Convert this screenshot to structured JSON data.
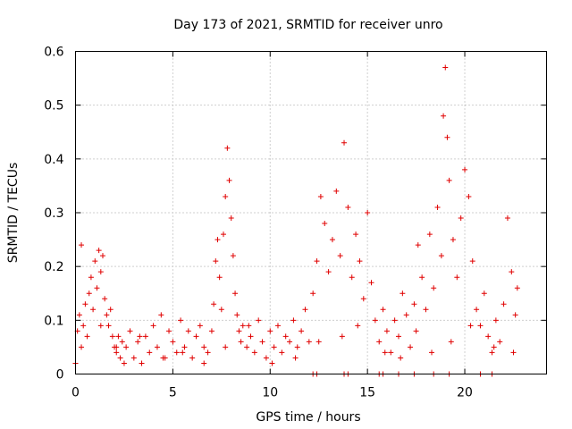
{
  "chart_data": {
    "type": "scatter",
    "title": "Day 173 of 2021, SRMTID for receiver unro",
    "xlabel": "GPS time / hours",
    "ylabel": "SRMTID / TECUs",
    "xlim": [
      0,
      24.2
    ],
    "ylim": [
      0,
      0.6
    ],
    "xticks": [
      0,
      5,
      10,
      15,
      20
    ],
    "yticks": [
      0,
      0.1,
      0.2,
      0.3,
      0.4,
      0.5,
      0.6
    ],
    "xtick_labels": [
      "0",
      "5",
      "10",
      "15",
      "20"
    ],
    "ytick_labels": [
      "0",
      "0.1",
      "0.2",
      "0.3",
      "0.4",
      "0.5",
      "0.6"
    ],
    "grid": true,
    "marker": "+",
    "color": "#e00000",
    "series": [
      {
        "name": "SRMTID",
        "x": [
          0.0,
          0.1,
          0.2,
          0.3,
          0.4,
          0.5,
          0.6,
          0.7,
          0.8,
          0.9,
          1.0,
          1.1,
          1.2,
          1.3,
          1.4,
          1.5,
          1.6,
          1.7,
          1.8,
          1.9,
          2.0,
          2.1,
          2.2,
          2.3,
          2.4,
          2.5,
          2.6,
          2.8,
          3.0,
          3.2,
          3.4,
          3.6,
          3.8,
          4.0,
          4.2,
          4.4,
          4.6,
          4.8,
          5.0,
          5.2,
          5.4,
          5.6,
          5.8,
          6.0,
          6.2,
          6.4,
          6.6,
          6.8,
          7.0,
          7.1,
          7.2,
          7.3,
          7.4,
          7.5,
          7.6,
          7.7,
          7.8,
          7.9,
          8.0,
          8.1,
          8.2,
          8.3,
          8.4,
          8.5,
          8.6,
          8.8,
          9.0,
          9.2,
          9.4,
          9.6,
          9.8,
          10.0,
          10.2,
          10.4,
          10.6,
          10.8,
          11.0,
          11.2,
          11.4,
          11.6,
          11.8,
          12.0,
          12.2,
          12.4,
          12.6,
          12.8,
          13.0,
          13.2,
          13.4,
          13.6,
          13.8,
          14.0,
          14.2,
          14.4,
          14.6,
          14.8,
          15.0,
          15.2,
          15.4,
          15.6,
          15.8,
          16.0,
          16.2,
          16.4,
          16.6,
          16.8,
          17.0,
          17.2,
          17.4,
          17.6,
          17.8,
          18.0,
          18.2,
          18.4,
          18.6,
          18.8,
          18.9,
          19.0,
          19.1,
          19.2,
          19.4,
          19.6,
          19.8,
          20.0,
          20.2,
          20.4,
          20.6,
          20.8,
          21.0,
          21.2,
          21.4,
          21.6,
          21.8,
          22.0,
          22.2,
          22.4,
          22.6,
          22.7,
          0.3,
          1.3,
          2.1,
          3.3,
          4.5,
          5.5,
          6.6,
          7.7,
          8.9,
          10.1,
          11.3,
          12.5,
          13.7,
          14.5,
          15.9,
          16.7,
          17.5,
          18.3,
          19.3,
          20.3,
          21.5,
          22.5,
          12.2,
          12.4,
          13.8,
          14.0,
          15.6,
          15.8,
          16.6,
          17.4,
          18.4,
          19.2,
          20.8,
          21.4
        ],
        "y": [
          0.02,
          0.08,
          0.11,
          0.05,
          0.09,
          0.13,
          0.07,
          0.15,
          0.18,
          0.12,
          0.21,
          0.16,
          0.23,
          0.19,
          0.22,
          0.14,
          0.11,
          0.09,
          0.12,
          0.07,
          0.05,
          0.04,
          0.07,
          0.03,
          0.06,
          0.02,
          0.05,
          0.08,
          0.03,
          0.06,
          0.02,
          0.07,
          0.04,
          0.09,
          0.05,
          0.11,
          0.03,
          0.08,
          0.06,
          0.04,
          0.1,
          0.05,
          0.08,
          0.03,
          0.07,
          0.09,
          0.05,
          0.04,
          0.08,
          0.13,
          0.21,
          0.25,
          0.18,
          0.12,
          0.26,
          0.33,
          0.42,
          0.36,
          0.29,
          0.22,
          0.15,
          0.11,
          0.08,
          0.06,
          0.09,
          0.05,
          0.07,
          0.04,
          0.1,
          0.06,
          0.03,
          0.08,
          0.05,
          0.09,
          0.04,
          0.07,
          0.06,
          0.1,
          0.05,
          0.08,
          0.12,
          0.06,
          0.15,
          0.21,
          0.33,
          0.28,
          0.19,
          0.25,
          0.34,
          0.22,
          0.43,
          0.31,
          0.18,
          0.26,
          0.21,
          0.14,
          0.3,
          0.17,
          0.1,
          0.06,
          0.12,
          0.08,
          0.04,
          0.1,
          0.07,
          0.15,
          0.11,
          0.05,
          0.13,
          0.24,
          0.18,
          0.12,
          0.26,
          0.16,
          0.31,
          0.22,
          0.48,
          0.57,
          0.44,
          0.36,
          0.25,
          0.18,
          0.29,
          0.38,
          0.33,
          0.21,
          0.12,
          0.09,
          0.15,
          0.07,
          0.04,
          0.1,
          0.06,
          0.13,
          0.29,
          0.19,
          0.11,
          0.16,
          0.24,
          0.09,
          0.05,
          0.07,
          0.03,
          0.04,
          0.02,
          0.05,
          0.09,
          0.02,
          0.03,
          0.06,
          0.07,
          0.09,
          0.04,
          0.03,
          0.08,
          0.04,
          0.06,
          0.09,
          0.05,
          0.04,
          0.0,
          0.0,
          0.0,
          0.0,
          0.0,
          0.0,
          0.0,
          0.0,
          0.0,
          0.0,
          0.0,
          0.0
        ]
      }
    ]
  }
}
